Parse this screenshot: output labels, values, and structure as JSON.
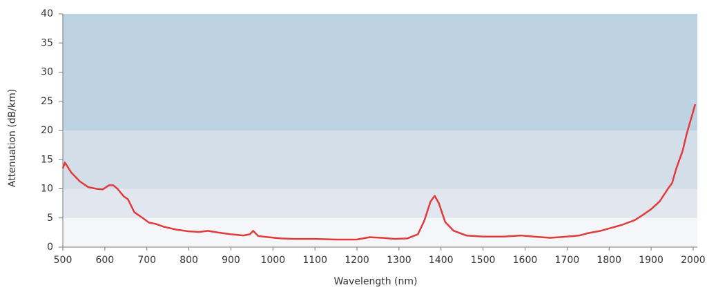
{
  "chart_data": {
    "type": "line",
    "x_label": "Wavelength (nm)",
    "y_label": "Attenuation (dB/km)",
    "xlim": [
      500,
      2010
    ],
    "ylim": [
      0,
      40
    ],
    "xticks": [
      500,
      600,
      700,
      800,
      900,
      1000,
      1100,
      1200,
      1300,
      1400,
      1500,
      1600,
      1700,
      1800,
      1900,
      2000
    ],
    "yticks": [
      0,
      5,
      10,
      15,
      20,
      25,
      30,
      35,
      40
    ],
    "bands": [
      {
        "from": 0,
        "to": 5,
        "color": "#f4f6f9"
      },
      {
        "from": 5,
        "to": 10,
        "color": "#e2e7ef"
      },
      {
        "from": 10,
        "to": 20,
        "color": "#d4dee8"
      },
      {
        "from": 20,
        "to": 40,
        "color": "#bdd3e4"
      }
    ],
    "x": [
      500,
      505,
      520,
      540,
      560,
      580,
      595,
      610,
      620,
      630,
      645,
      655,
      670,
      690,
      705,
      720,
      740,
      770,
      800,
      825,
      845,
      870,
      900,
      930,
      945,
      953,
      965,
      990,
      1020,
      1050,
      1100,
      1150,
      1200,
      1230,
      1260,
      1290,
      1320,
      1345,
      1360,
      1375,
      1385,
      1395,
      1410,
      1430,
      1460,
      1500,
      1550,
      1590,
      1620,
      1660,
      1700,
      1730,
      1750,
      1780,
      1800,
      1830,
      1860,
      1880,
      1900,
      1920,
      1940,
      1950,
      1960,
      1975,
      1985,
      1995,
      2005
    ],
    "series": [
      {
        "color": "#e03a3a",
        "values": [
          13.5,
          14.5,
          12.8,
          11.3,
          10.3,
          10.0,
          9.9,
          10.6,
          10.6,
          10.0,
          8.7,
          8.2,
          6.0,
          5.0,
          4.2,
          4.0,
          3.5,
          3.0,
          2.7,
          2.6,
          2.8,
          2.5,
          2.2,
          2.0,
          2.2,
          2.8,
          1.9,
          1.7,
          1.5,
          1.4,
          1.4,
          1.3,
          1.3,
          1.7,
          1.6,
          1.4,
          1.5,
          2.2,
          4.5,
          7.8,
          8.8,
          7.5,
          4.3,
          2.8,
          2.0,
          1.8,
          1.8,
          2.0,
          1.8,
          1.6,
          1.8,
          2.0,
          2.4,
          2.8,
          3.2,
          3.8,
          4.6,
          5.5,
          6.5,
          7.8,
          10.0,
          11.0,
          13.5,
          16.5,
          19.5,
          22.0,
          24.5
        ]
      }
    ]
  }
}
